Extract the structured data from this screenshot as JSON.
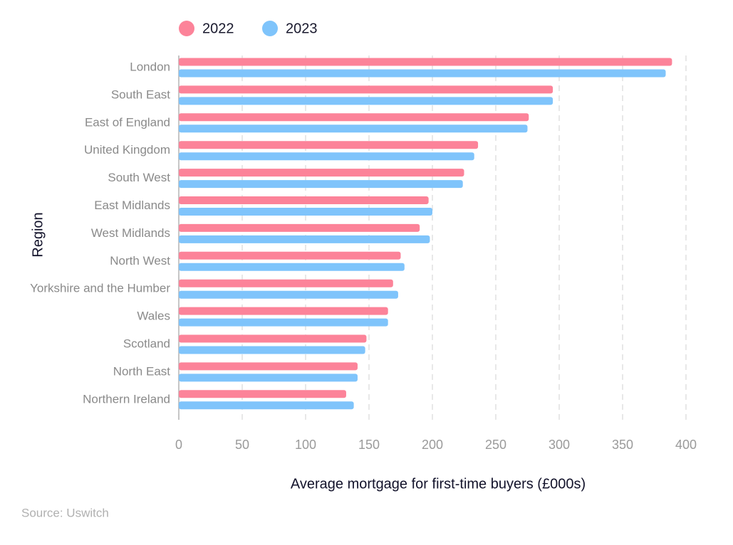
{
  "chart_data": {
    "type": "bar",
    "orientation": "horizontal",
    "categories": [
      "London",
      "South East",
      "East of England",
      "United Kingdom",
      "South West",
      "East Midlands",
      "West Midlands",
      "North West",
      "Yorkshire and the Humber",
      "Wales",
      "Scotland",
      "North East",
      "Northern Ireland"
    ],
    "series": [
      {
        "name": "2022",
        "color": "#fc8399",
        "values": [
          389,
          295,
          276,
          236,
          225,
          197,
          190,
          175,
          169,
          165,
          148,
          141,
          132
        ]
      },
      {
        "name": "2023",
        "color": "#7fc4fb",
        "values": [
          384,
          295,
          275,
          233,
          224,
          200,
          198,
          178,
          173,
          165,
          147,
          141,
          138
        ]
      }
    ],
    "xlim": [
      0,
      400
    ],
    "xticks": [
      0,
      50,
      100,
      150,
      200,
      250,
      300,
      350,
      400
    ],
    "x_label": "Average mortgage for first-time buyers (£000s)",
    "y_label": "Region",
    "source": "Source: Uswitch",
    "grid": true,
    "legend": "top"
  }
}
